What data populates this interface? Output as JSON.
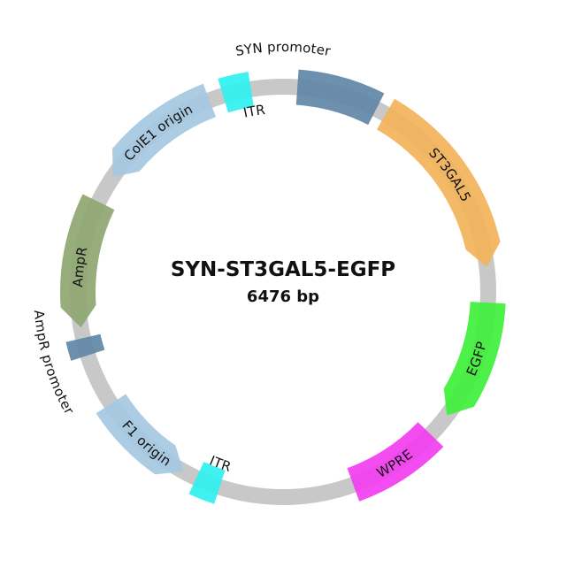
{
  "plasmid": {
    "name": "SYN-ST3GAL5-EGFP",
    "size_label": "6476 bp"
  },
  "features": [
    {
      "id": "syn-promoter",
      "label": "SYN promoter",
      "color": "#5f87a6",
      "label_position": "outside"
    },
    {
      "id": "st3gal5",
      "label": "ST3GAL5",
      "color": "#f3b35a",
      "label_position": "inside"
    },
    {
      "id": "egfp",
      "label": "EGFP",
      "color": "#3ff03a",
      "label_position": "inside"
    },
    {
      "id": "wpre",
      "label": "WPRE",
      "color": "#f23ef0",
      "label_position": "inside"
    },
    {
      "id": "itr-bottom",
      "label": "ITR",
      "color": "#2ff0f0",
      "label_position": "outside"
    },
    {
      "id": "f1-origin",
      "label": "F1 origin",
      "color": "#a4c8e0",
      "label_position": "inside"
    },
    {
      "id": "ampr-promoter",
      "label": "AmpR promoter",
      "color": "#5f87a6",
      "label_position": "outside"
    },
    {
      "id": "ampr",
      "label": "AmpR",
      "color": "#8ea670",
      "label_position": "inside"
    },
    {
      "id": "cole1-origin",
      "label": "ColE1 origin",
      "color": "#a4c8e0",
      "label_position": "inside"
    },
    {
      "id": "itr-top",
      "label": "ITR",
      "color": "#2ff0f0",
      "label_position": "outside"
    }
  ],
  "colors": {
    "backbone": "#c8c8c8",
    "text": "#111111"
  }
}
